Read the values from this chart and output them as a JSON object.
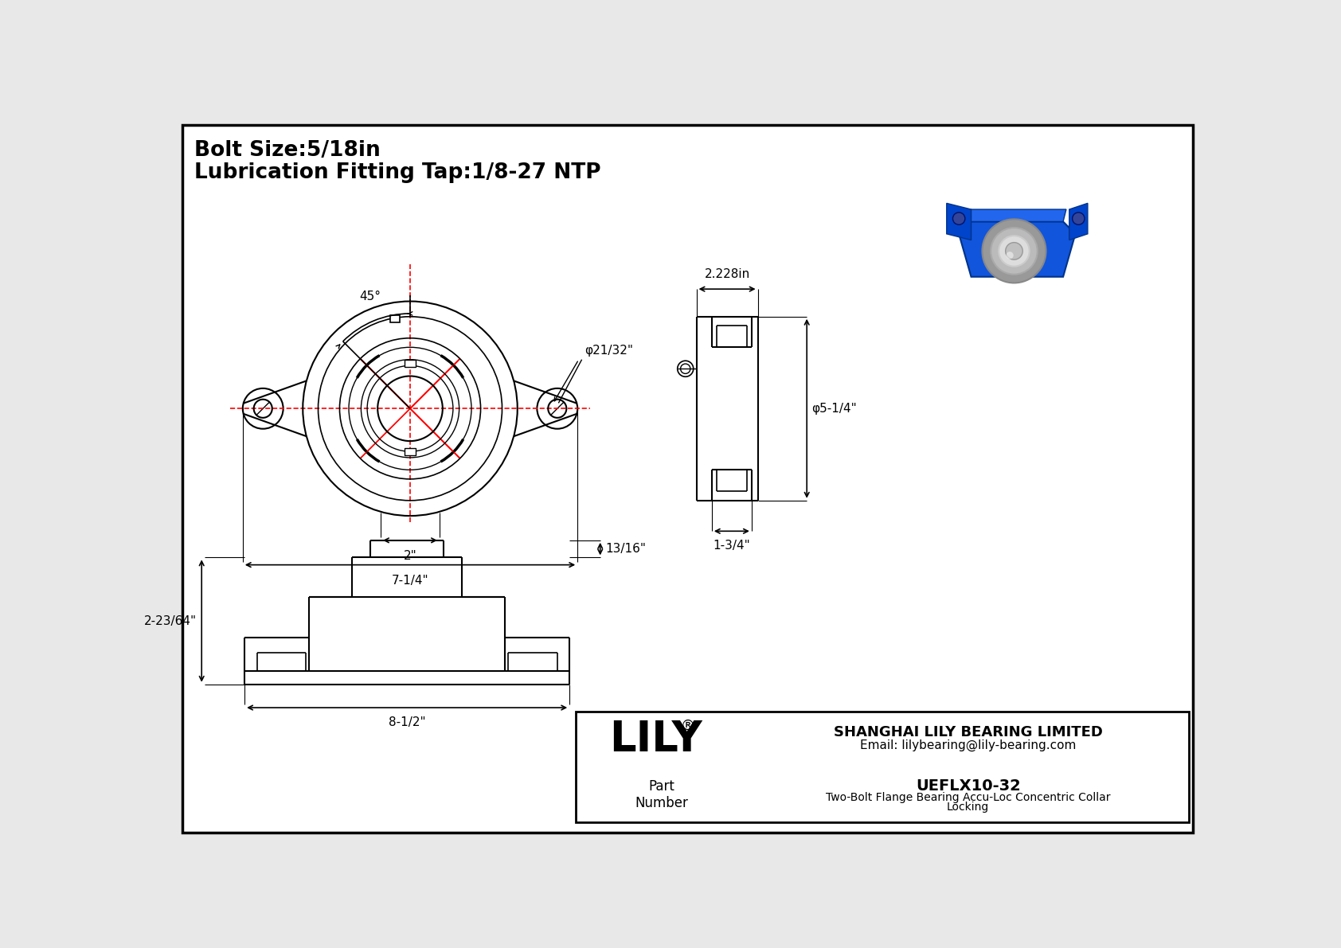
{
  "title_line1": "Bolt Size:5/18in",
  "title_line2": "Lubrication Fitting Tap:1/8-27 NTP",
  "bg_color": "#e8e8e8",
  "drawing_bg": "#ffffff",
  "line_color": "#000000",
  "red_color": "#ff0000",
  "part_number": "UEFLX10-32",
  "part_desc1": "Two-Bolt Flange Bearing Accu-Loc Concentric Collar",
  "part_desc2": "Locking",
  "company": "SHANGHAI LILY BEARING LIMITED",
  "email": "Email: lilybearing@lily-bearing.com",
  "brand": "LILY",
  "dim_2in": "2\"",
  "dim_7_14": "7-1/4\"",
  "dim_45deg": "45°",
  "dim_phi2132": "φ21/32\"",
  "dim_2228in": "2.228in",
  "dim_phi5_14": "φ5-1/4\"",
  "dim_1_34": "1-3/4\"",
  "dim_13_16": "13/16\"",
  "dim_2_2364": "2-23/64\"",
  "dim_8_12": "8-1/2\""
}
